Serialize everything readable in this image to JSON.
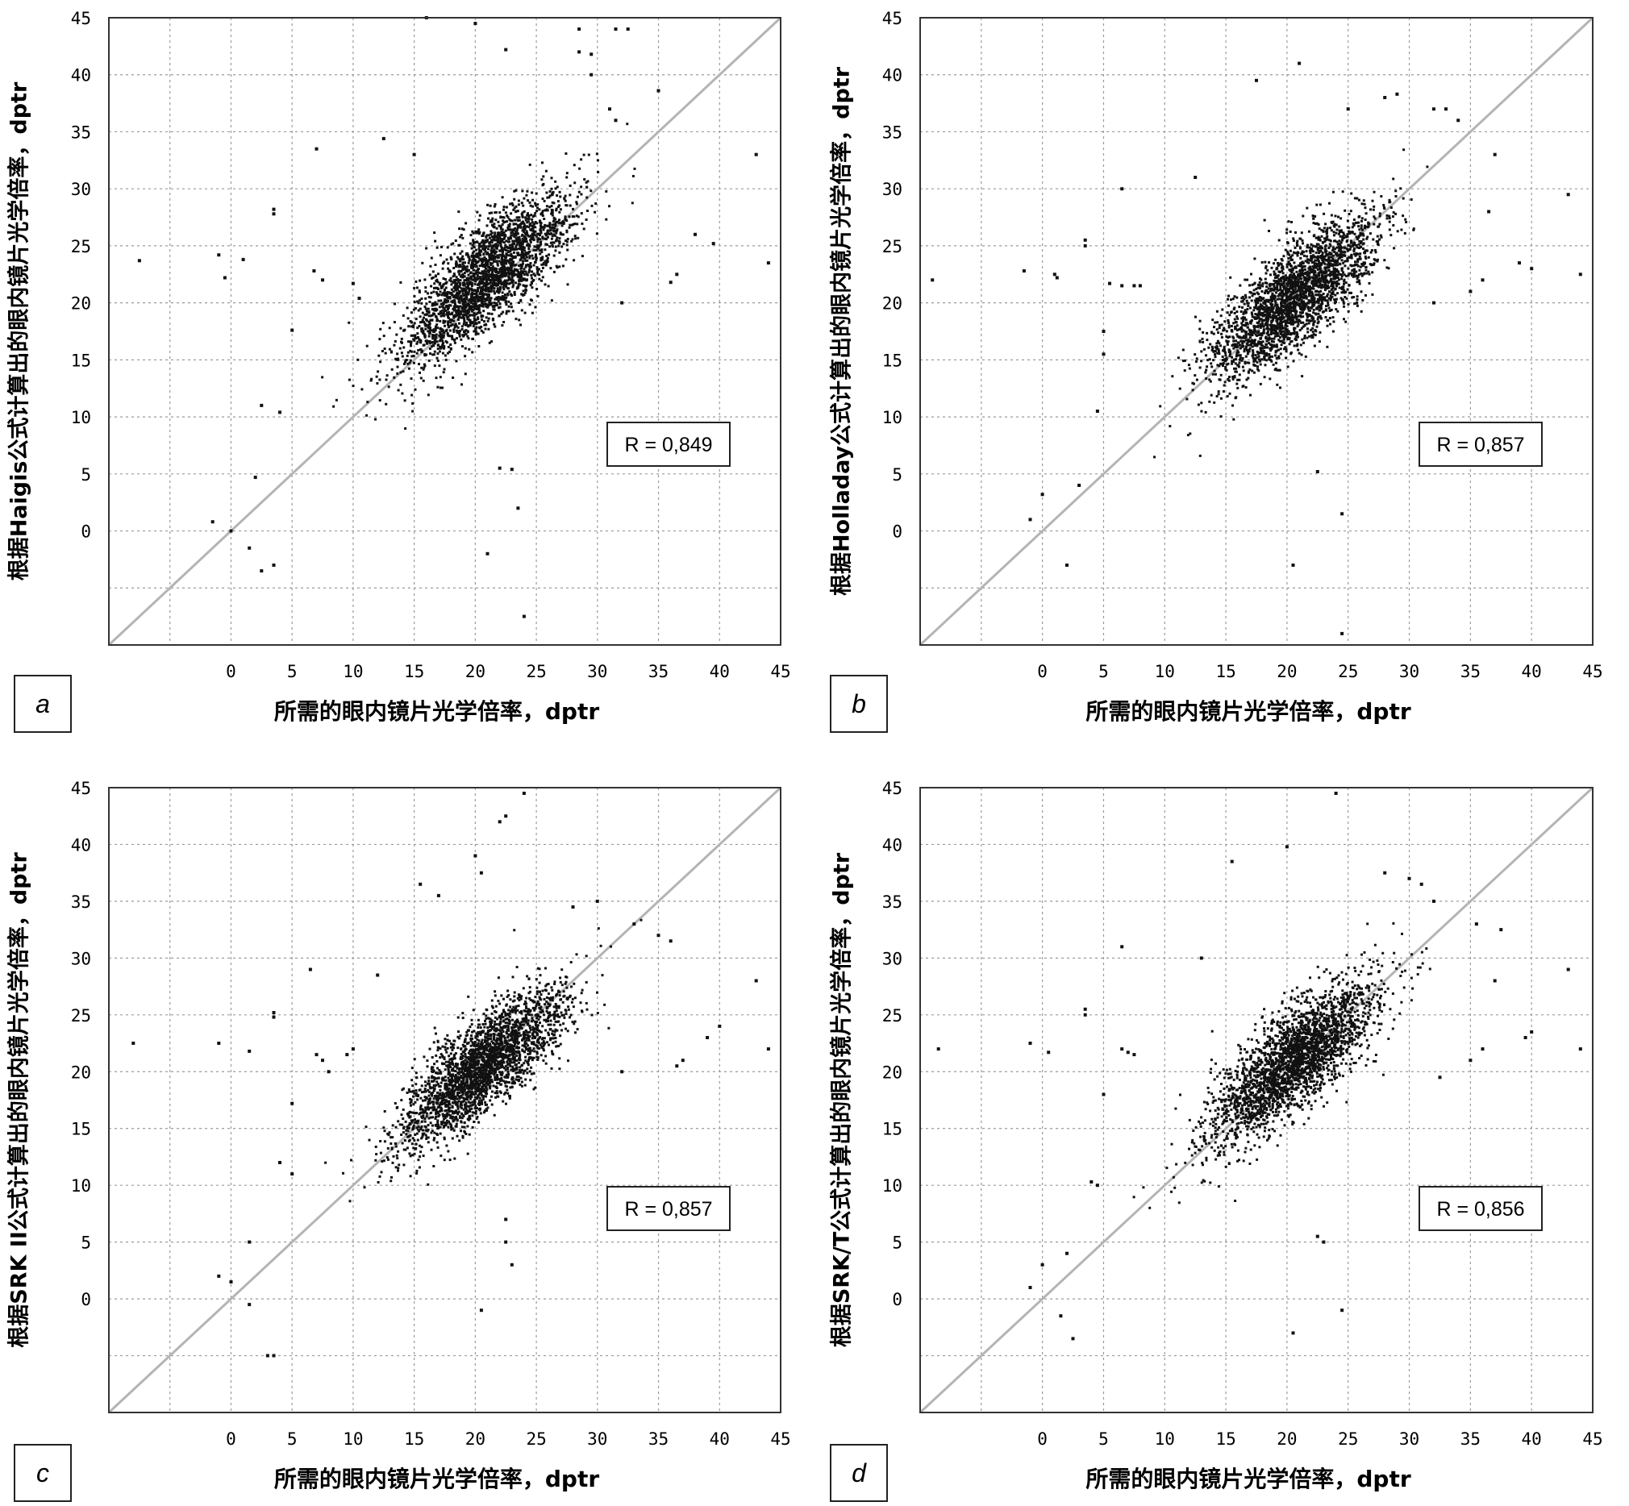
{
  "figure": {
    "title": "",
    "shared_xlabel": "所需的眼内镜片光学倍率，dptr"
  },
  "chart_data": [
    {
      "type": "scatter",
      "panel_label": "a",
      "xlabel": "所需的眼内镜片光学倍率，dptr",
      "ylabel": "根据Haigis公式计算出的眼内镜片光学倍率，dptr",
      "annotation": "R = 0,849",
      "r": 0.849,
      "xlim": [
        -10,
        45
      ],
      "ylim": [
        -10,
        45
      ],
      "x_ticks": [
        "0",
        "5",
        "10",
        "15",
        "20",
        "25",
        "30",
        "35",
        "40",
        "45"
      ],
      "y_ticks": [
        "0",
        "5",
        "10",
        "15",
        "20",
        "25",
        "30",
        "35",
        "40",
        "45"
      ],
      "grid": true,
      "reference_line": "y = x",
      "colors": {
        "points": "#111111",
        "reference_line": "#b4b4b4",
        "grid": "#9a9a9a"
      },
      "cloud": {
        "n": 2600,
        "center": [
          21,
          22.5
        ],
        "sd_along": 4.6,
        "sd_across": 1.75,
        "offset_at_low_x": -2.5
      },
      "outliers": [
        [
          -7.5,
          23.7
        ],
        [
          -1,
          24.2
        ],
        [
          -0.5,
          22.2
        ],
        [
          1,
          23.8
        ],
        [
          3.5,
          27.8
        ],
        [
          3.5,
          28.2
        ],
        [
          7,
          33.5
        ],
        [
          12.5,
          34.4
        ],
        [
          6.8,
          22.8
        ],
        [
          7.5,
          22
        ],
        [
          10,
          21.7
        ],
        [
          10.5,
          20.4
        ],
        [
          5,
          17.6
        ],
        [
          2.5,
          11
        ],
        [
          4,
          10.4
        ],
        [
          2,
          4.7
        ],
        [
          -1.5,
          0.8
        ],
        [
          0,
          0
        ],
        [
          1.5,
          -1.5
        ],
        [
          3.5,
          -3
        ],
        [
          2.5,
          -3.5
        ],
        [
          24,
          -7.5
        ],
        [
          21,
          -2
        ],
        [
          23.5,
          2
        ],
        [
          22,
          5.5
        ],
        [
          23,
          5.4
        ],
        [
          22.5,
          42.2
        ],
        [
          20,
          44.5
        ],
        [
          16,
          45
        ],
        [
          28.5,
          44
        ],
        [
          31.5,
          44
        ],
        [
          32.5,
          44
        ],
        [
          28.5,
          42
        ],
        [
          29.5,
          41.8
        ],
        [
          29.5,
          40
        ],
        [
          31.5,
          36
        ],
        [
          31,
          37
        ],
        [
          35,
          38.6
        ],
        [
          43,
          33
        ],
        [
          38,
          26
        ],
        [
          39.5,
          25.2
        ],
        [
          36.5,
          22.5
        ],
        [
          36,
          21.8
        ],
        [
          44,
          23.5
        ],
        [
          32,
          20
        ],
        [
          15,
          33
        ]
      ]
    },
    {
      "type": "scatter",
      "panel_label": "b",
      "xlabel": "所需的眼内镜片光学倍率，dptr",
      "ylabel": "根据Holladay公式计算出的眼内镜片光学倍率，dptr",
      "annotation": "R = 0,857",
      "r": 0.857,
      "xlim": [
        -10,
        45
      ],
      "ylim": [
        -10,
        45
      ],
      "x_ticks": [
        "0",
        "5",
        "10",
        "15",
        "20",
        "25",
        "30",
        "35",
        "40",
        "45"
      ],
      "y_ticks": [
        "0",
        "5",
        "10",
        "15",
        "20",
        "25",
        "30",
        "35",
        "40",
        "45"
      ],
      "grid": true,
      "reference_line": "y = x",
      "colors": {
        "points": "#111111",
        "reference_line": "#b4b4b4",
        "grid": "#9a9a9a"
      },
      "cloud": {
        "n": 2600,
        "center": [
          20.5,
          20.5
        ],
        "sd_along": 4.5,
        "sd_across": 1.65,
        "offset_at_low_x": -1.8
      },
      "outliers": [
        [
          -9,
          22
        ],
        [
          -1.5,
          22.8
        ],
        [
          1,
          22.5
        ],
        [
          1.2,
          22.2
        ],
        [
          3.5,
          25.5
        ],
        [
          3.5,
          25
        ],
        [
          6.5,
          30
        ],
        [
          12.5,
          31
        ],
        [
          5.5,
          21.7
        ],
        [
          6.5,
          21.5
        ],
        [
          7.5,
          21.5
        ],
        [
          8,
          21.5
        ],
        [
          5,
          17.5
        ],
        [
          5,
          15.5
        ],
        [
          4.5,
          10.5
        ],
        [
          3,
          4
        ],
        [
          0,
          3.2
        ],
        [
          -1,
          1
        ],
        [
          2,
          -3
        ],
        [
          24.5,
          -9
        ],
        [
          20.5,
          -3
        ],
        [
          24.5,
          1.5
        ],
        [
          22.5,
          5.2
        ],
        [
          17.5,
          39.5
        ],
        [
          21,
          41
        ],
        [
          25,
          37
        ],
        [
          28,
          38
        ],
        [
          29,
          38.3
        ],
        [
          32,
          37
        ],
        [
          33,
          37
        ],
        [
          34,
          36
        ],
        [
          37,
          33
        ],
        [
          43,
          29.5
        ],
        [
          39,
          23.5
        ],
        [
          40,
          23
        ],
        [
          35,
          21
        ],
        [
          36,
          22
        ],
        [
          44,
          22.5
        ],
        [
          32,
          20
        ],
        [
          36.5,
          28
        ]
      ]
    },
    {
      "type": "scatter",
      "panel_label": "c",
      "xlabel": "所需的眼内镜片光学倍率，dptr",
      "ylabel": "根据SRK II公式计算出的眼内镜片光学倍率，dptr",
      "annotation": "R = 0,857",
      "r": 0.857,
      "xlim": [
        -10,
        45
      ],
      "ylim": [
        -10,
        45
      ],
      "x_ticks": [
        "0",
        "5",
        "10",
        "15",
        "20",
        "25",
        "30",
        "35",
        "40",
        "45"
      ],
      "y_ticks": [
        "0",
        "5",
        "10",
        "15",
        "20",
        "25",
        "30",
        "35",
        "40",
        "45"
      ],
      "grid": true,
      "reference_line": "y = x",
      "colors": {
        "points": "#111111",
        "reference_line": "#b4b4b4",
        "grid": "#9a9a9a"
      },
      "cloud": {
        "n": 2600,
        "center": [
          20.5,
          20.5
        ],
        "sd_along": 4.4,
        "sd_across": 1.6,
        "offset_at_low_x": -1.5
      },
      "outliers": [
        [
          -8,
          22.5
        ],
        [
          -1,
          22.5
        ],
        [
          1.5,
          21.8
        ],
        [
          3.5,
          25.2
        ],
        [
          3.5,
          24.8
        ],
        [
          6.5,
          29
        ],
        [
          12,
          28.5
        ],
        [
          7,
          21.5
        ],
        [
          7.5,
          21
        ],
        [
          8,
          20
        ],
        [
          9.5,
          21.5
        ],
        [
          10,
          22
        ],
        [
          5,
          17.2
        ],
        [
          4,
          12
        ],
        [
          5,
          11
        ],
        [
          1.5,
          5
        ],
        [
          0,
          1.5
        ],
        [
          -1,
          2
        ],
        [
          1.5,
          -0.5
        ],
        [
          3,
          -5
        ],
        [
          3.5,
          -5
        ],
        [
          20.5,
          -1
        ],
        [
          22.5,
          5
        ],
        [
          22.5,
          7
        ],
        [
          23,
          3
        ],
        [
          15.5,
          36.5
        ],
        [
          17,
          35.5
        ],
        [
          20,
          39
        ],
        [
          20.5,
          37.5
        ],
        [
          22,
          42
        ],
        [
          22.5,
          42.5
        ],
        [
          24,
          44.5
        ],
        [
          28,
          34.5
        ],
        [
          30,
          35
        ],
        [
          33,
          33
        ],
        [
          35,
          32
        ],
        [
          36,
          31.5
        ],
        [
          43,
          28
        ],
        [
          40,
          24
        ],
        [
          39,
          23
        ],
        [
          37,
          21
        ],
        [
          36.5,
          20.5
        ],
        [
          44,
          22
        ],
        [
          32,
          20
        ]
      ]
    },
    {
      "type": "scatter",
      "panel_label": "d",
      "xlabel": "所需的眼内镜片光学倍率，dptr",
      "ylabel": "根据SRK/T公式计算出的眼内镜片光学倍率，dptr",
      "annotation": "R = 0,856",
      "r": 0.856,
      "xlim": [
        -10,
        45
      ],
      "ylim": [
        -10,
        45
      ],
      "x_ticks": [
        "0",
        "5",
        "10",
        "15",
        "20",
        "25",
        "30",
        "35",
        "40",
        "45"
      ],
      "y_ticks": [
        "0",
        "5",
        "10",
        "15",
        "20",
        "25",
        "30",
        "35",
        "40",
        "45"
      ],
      "grid": true,
      "reference_line": "y = x",
      "colors": {
        "points": "#111111",
        "reference_line": "#b4b4b4",
        "grid": "#9a9a9a"
      },
      "cloud": {
        "n": 2600,
        "center": [
          20.5,
          21
        ],
        "sd_along": 4.5,
        "sd_across": 1.7,
        "offset_at_low_x": -2.2
      },
      "outliers": [
        [
          -8.5,
          22
        ],
        [
          -1,
          22.5
        ],
        [
          0.5,
          21.7
        ],
        [
          3.5,
          25.5
        ],
        [
          3.5,
          25
        ],
        [
          6.5,
          31
        ],
        [
          13,
          30
        ],
        [
          6.5,
          22
        ],
        [
          7,
          21.7
        ],
        [
          7.5,
          21.5
        ],
        [
          5,
          18
        ],
        [
          4.5,
          10
        ],
        [
          4,
          10.3
        ],
        [
          2,
          4
        ],
        [
          0,
          3
        ],
        [
          -1,
          1
        ],
        [
          1.5,
          -1.5
        ],
        [
          2.5,
          -3.5
        ],
        [
          20.5,
          -3
        ],
        [
          24.5,
          -1
        ],
        [
          22.5,
          5.5
        ],
        [
          23,
          5
        ],
        [
          15.5,
          38.5
        ],
        [
          20,
          39.8
        ],
        [
          24,
          44.5
        ],
        [
          28,
          37.5
        ],
        [
          30,
          37
        ],
        [
          31,
          36.5
        ],
        [
          32,
          35
        ],
        [
          35.5,
          33
        ],
        [
          37.5,
          32.5
        ],
        [
          43,
          29
        ],
        [
          40,
          23.5
        ],
        [
          39.5,
          23
        ],
        [
          35,
          21
        ],
        [
          36,
          22
        ],
        [
          44,
          22
        ],
        [
          32.5,
          19.5
        ],
        [
          37,
          28
        ]
      ]
    }
  ]
}
